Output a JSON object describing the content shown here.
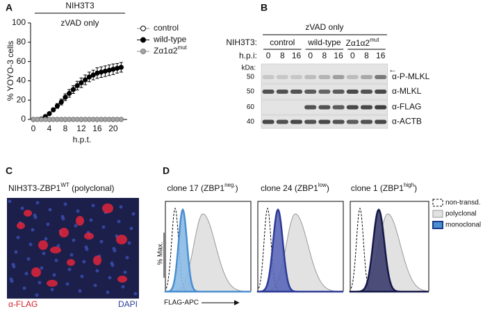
{
  "chart_data": [
    {
      "type": "line",
      "panel_label": "A",
      "header": "NIH3T3",
      "title": "zVAD only",
      "x_label": "h.p.t.",
      "y_label": "% YOYO-3 cells",
      "x": [
        0,
        1,
        2,
        3,
        4,
        5,
        6,
        7,
        8,
        9,
        10,
        11,
        12,
        13,
        14,
        15,
        16,
        17,
        18,
        19,
        20,
        21,
        22
      ],
      "series": [
        {
          "name": "control",
          "color": "#ffffff",
          "values": [
            0,
            0,
            0,
            0,
            0,
            0,
            0,
            0,
            0,
            0,
            0,
            0,
            0,
            0,
            0,
            0,
            0,
            0,
            0,
            0,
            0,
            0,
            0
          ]
        },
        {
          "name": "wild-type",
          "color": "#000000",
          "values": [
            0,
            0,
            0.5,
            3,
            6,
            10,
            14,
            18,
            23,
            27,
            31,
            35,
            38,
            41,
            44,
            46,
            48,
            49,
            50,
            51,
            52,
            53,
            54
          ],
          "errors": [
            0,
            0,
            0.5,
            1,
            1.5,
            2,
            2.5,
            3,
            3.5,
            4,
            4,
            4.5,
            5,
            5,
            5,
            5,
            5.5,
            5.5,
            5.5,
            5.5,
            5.5,
            5,
            5
          ]
        },
        {
          "name": "Zα1α2",
          "name_sup": "mut",
          "color": "#a6a6a6",
          "values": [
            0,
            0,
            0,
            0,
            0,
            0,
            0,
            0,
            0,
            0,
            0,
            0,
            0,
            0,
            0,
            0,
            0,
            0,
            0,
            0,
            0,
            0,
            0
          ]
        }
      ],
      "xlim": [
        -0.7,
        23.5
      ],
      "ylim": [
        0,
        100
      ],
      "xticks": [
        0,
        4,
        8,
        12,
        16,
        20
      ],
      "yticks": [
        0,
        20,
        40,
        60,
        80,
        100
      ]
    }
  ],
  "panel_b": {
    "panel_label": "B",
    "treatment": "zVAD only",
    "cell_label": "NIH3T3:",
    "groups": [
      {
        "text": "control"
      },
      {
        "text": "wild-type"
      },
      {
        "text": "Zα1α2",
        "sup": "mut"
      }
    ],
    "time_label": "h.p.i:",
    "times": [
      "0",
      "8",
      "16",
      "0",
      "8",
      "16",
      "0",
      "8",
      "16"
    ],
    "kda_label": "kDa:",
    "markers": [
      "50",
      "50",
      "60",
      "40"
    ],
    "antibodies": [
      "α-P-MLKL",
      "α-MLKL",
      "α-FLAG",
      "α-ACTB"
    ]
  },
  "panel_c": {
    "panel_label": "C",
    "title": "NIH3T3-ZBP1",
    "title_sup": "WT",
    "title_rest": " (polyclonal)",
    "stain_1": "α-FLAG",
    "stain_2": "DAPI"
  },
  "panel_d": {
    "panel_label": "D",
    "clones": [
      {
        "text": "clone 17 (ZBP1",
        "sup": "neg.",
        "end": ")"
      },
      {
        "text": "clone 24 (ZBP1",
        "sup": "low",
        "end": ")"
      },
      {
        "text": "clone 1 (ZBP1",
        "sup": "high",
        "end": ")"
      }
    ],
    "legend": [
      "non-transd.",
      "polyclonal",
      "monoclonal"
    ],
    "y_label": "% Max.",
    "x_label": "FLAG-APC"
  }
}
